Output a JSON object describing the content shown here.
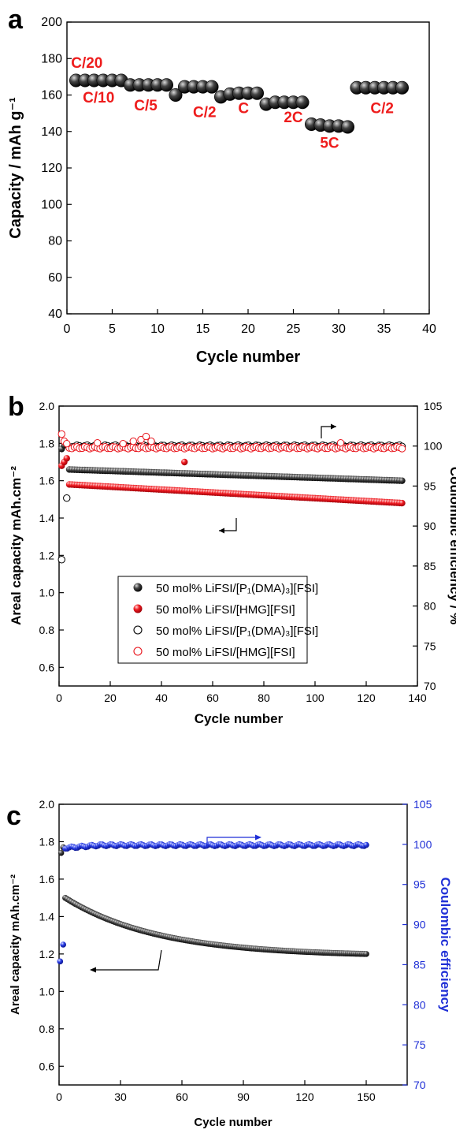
{
  "chart_data": [
    {
      "panel": "a",
      "type": "scatter",
      "xlabel": "Cycle number",
      "ylabel": "Capacity / mAh g⁻¹",
      "xlim": [
        0,
        40
      ],
      "ylim": [
        40,
        200
      ],
      "xticks": [
        0,
        5,
        10,
        15,
        20,
        25,
        30,
        35,
        40
      ],
      "yticks": [
        40,
        60,
        80,
        100,
        120,
        140,
        160,
        180,
        200
      ],
      "grid": false,
      "series": [
        {
          "marker_color": "#1a1a1a",
          "x": [
            1,
            2,
            3,
            4,
            5,
            6,
            7,
            8,
            9,
            10,
            11,
            12,
            13,
            14,
            15,
            16,
            17,
            18,
            19,
            20,
            21,
            22,
            23,
            24,
            25,
            26,
            27,
            28,
            29,
            30,
            31,
            32,
            33,
            34,
            35,
            36,
            37
          ],
          "y": [
            168,
            168,
            168,
            168,
            168,
            168,
            165.5,
            165.5,
            165.5,
            165.5,
            165.5,
            160,
            164.5,
            164.5,
            164.5,
            164.5,
            159,
            160.5,
            161,
            161,
            161,
            155,
            156,
            156,
            156,
            156,
            144,
            143.5,
            143,
            143,
            142.5,
            164,
            164,
            164,
            164,
            164,
            164
          ]
        }
      ],
      "annotations": [
        {
          "text": "C/20",
          "x": 2.2,
          "y": 175
        },
        {
          "text": "C/10",
          "x": 3.5,
          "y": 156
        },
        {
          "text": "C/5",
          "x": 8.7,
          "y": 151.5
        },
        {
          "text": "C/2",
          "x": 15.2,
          "y": 148
        },
        {
          "text": "C",
          "x": 19.5,
          "y": 150
        },
        {
          "text": "2C",
          "x": 25,
          "y": 145
        },
        {
          "text": "5C",
          "x": 29,
          "y": 131
        },
        {
          "text": "C/2",
          "x": 34.8,
          "y": 150
        }
      ]
    },
    {
      "panel": "b",
      "type": "scatter",
      "xlabel": "Cycle number",
      "ylabel": "Areal capacity mAh.cm⁻²",
      "y2label": "Coulombic efficiency / %",
      "xlim": [
        0,
        140
      ],
      "ylim": [
        0.5,
        2.0
      ],
      "y2lim": [
        70,
        105
      ],
      "xticks": [
        0,
        20,
        40,
        60,
        80,
        100,
        120,
        140
      ],
      "yticks": [
        0.6,
        0.8,
        1.0,
        1.2,
        1.4,
        1.6,
        1.8,
        2.0
      ],
      "y2ticks": [
        70,
        75,
        80,
        85,
        90,
        95,
        100,
        105
      ],
      "grid": false,
      "legend_placement": "center-left",
      "series": [
        {
          "name": "50 mol% LiFSI/[P₁(DMA)₃][FSI]",
          "axis": "left",
          "filled": true,
          "color": "#000000",
          "x_start": 4,
          "x_end": 134,
          "y_start": 1.66,
          "y_end": 1.6,
          "early_x": [
            1,
            2
          ],
          "early_y": [
            1.77,
            1.79
          ]
        },
        {
          "name": "50 mol% LiFSI/[HMG][FSI]",
          "axis": "left",
          "filled": true,
          "color": "#e8141b",
          "x_start": 4,
          "x_end": 134,
          "y_start": 1.58,
          "y_end": 1.48,
          "early_x": [
            1,
            2,
            3,
            49
          ],
          "early_y": [
            1.68,
            1.7,
            1.72,
            1.7
          ]
        },
        {
          "name": "50 mol% LiFSI/[P₁(DMA)₃][FSI]",
          "axis": "right",
          "filled": false,
          "color": "#000000",
          "x_start": 5,
          "x_end": 134,
          "y_level": 100.0,
          "early_x": [
            1,
            3
          ],
          "early_y": [
            85.8,
            93.5
          ]
        },
        {
          "name": "50 mol% LiFSI/[HMG][FSI]",
          "axis": "right",
          "filled": false,
          "color": "#e8141b",
          "x_start": 4,
          "x_end": 134,
          "y_level": 99.8,
          "early_x": [
            1,
            2,
            3,
            15,
            25,
            29,
            32,
            34,
            36,
            110
          ],
          "early_y": [
            101.5,
            100.6,
            100.3,
            100.4,
            100.3,
            100.6,
            100.8,
            101.2,
            100.6,
            100.4
          ]
        }
      ]
    },
    {
      "panel": "c",
      "type": "scatter",
      "xlabel": "Cycle number",
      "ylabel": "Areal capacity mAh.cm⁻²",
      "y2label": "Coulombic efficiency",
      "xlim": [
        0,
        170
      ],
      "ylim": [
        0.5,
        2.0
      ],
      "y2lim": [
        70,
        105
      ],
      "xticks": [
        0,
        30,
        60,
        90,
        120,
        150
      ],
      "yticks": [
        0.6,
        0.8,
        1.0,
        1.2,
        1.4,
        1.6,
        1.8,
        2.0
      ],
      "y2ticks": [
        70,
        75,
        80,
        85,
        90,
        95,
        100,
        105
      ],
      "grid": false,
      "series": [
        {
          "axis": "left",
          "color": "#000000",
          "filled": true,
          "x_start": 3,
          "x_end": 150,
          "y_start": 1.5,
          "y_end": 1.2,
          "decay": 0.022,
          "early_x": [
            1,
            2
          ],
          "early_y": [
            1.74,
            1.77
          ]
        },
        {
          "axis": "right",
          "color": "#1f2fd6",
          "filled": true,
          "x_start": 3,
          "x_end": 150,
          "y_level": 99.9,
          "early_x": [
            0.5,
            2
          ],
          "early_y": [
            85.4,
            87.5
          ]
        }
      ]
    }
  ],
  "panel_b_legend": [
    "50 mol% LiFSI/[P₁(DMA)₃][FSI]",
    "50 mol% LiFSI/[HMG][FSI]",
    "50 mol% LiFSI/[P₁(DMA)₃][FSI]",
    "50 mol% LiFSI/[HMG][FSI]"
  ],
  "colors": {
    "red": "#e8141b",
    "blue": "#1f2fd6",
    "black": "#000000",
    "rate_label": "#ee1c1c"
  }
}
